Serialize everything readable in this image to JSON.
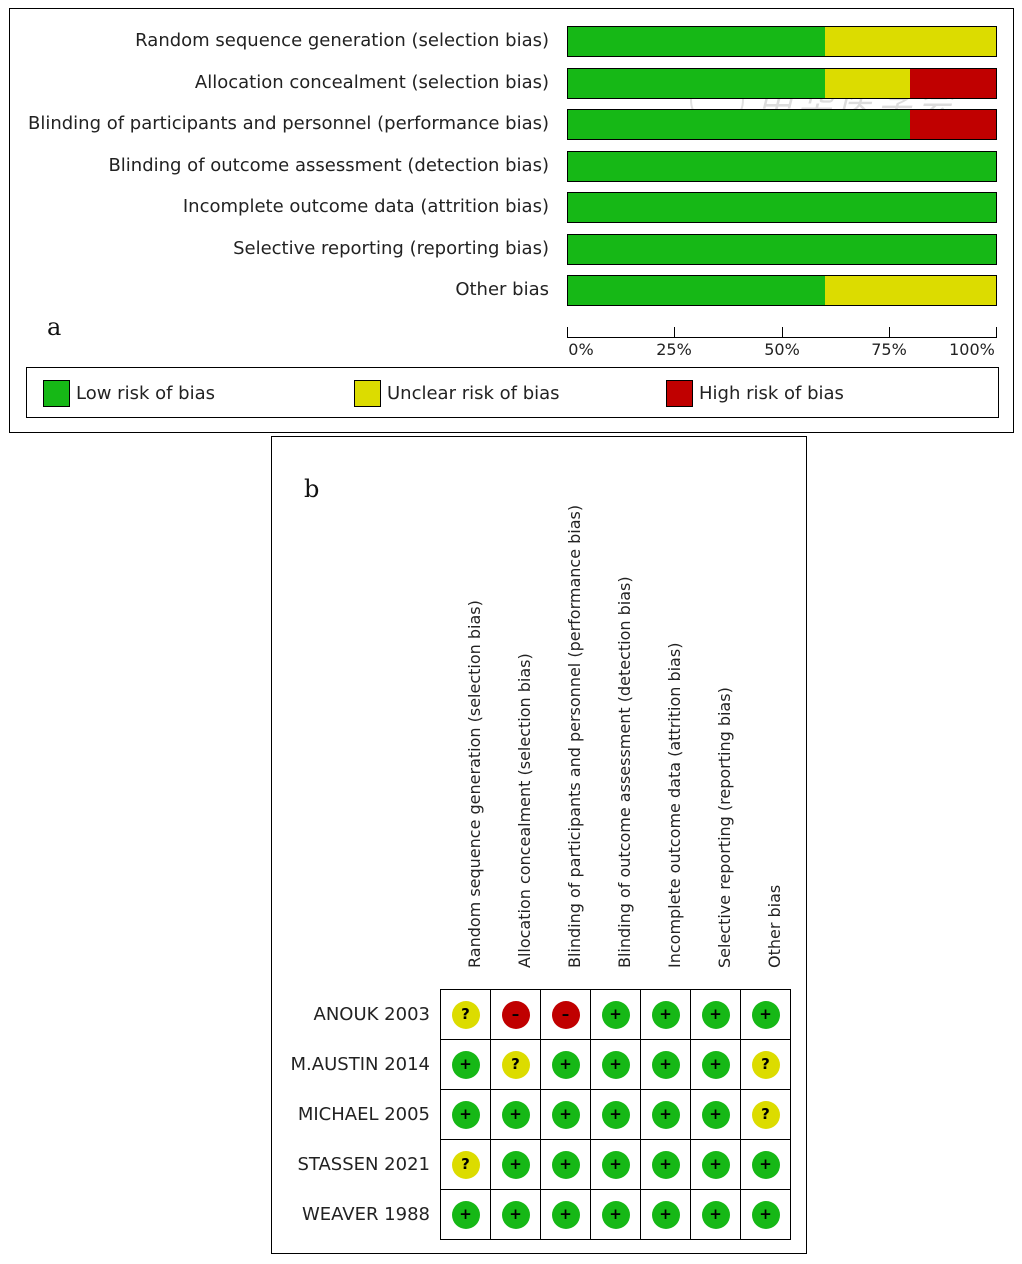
{
  "colors": {
    "low": "#16b816",
    "unclear": "#dcdc00",
    "high": "#c00000"
  },
  "symbols": {
    "low": "+",
    "unclear": "?",
    "high": "–"
  },
  "watermark": {
    "text": "中华医学会",
    "icon": "seal-icon"
  },
  "chart_data": [
    {
      "type": "bar",
      "orientation": "horizontal",
      "stacked": true,
      "panel_label": "a",
      "categories": [
        "Random sequence generation (selection bias)",
        "Allocation concealment (selection bias)",
        "Blinding of participants and personnel (performance bias)",
        "Blinding of outcome assessment (detection bias)",
        "Incomplete outcome data (attrition bias)",
        "Selective reporting (reporting bias)",
        "Other bias"
      ],
      "series": [
        {
          "key": "low",
          "name": "Low risk of bias",
          "values": [
            60,
            60,
            80,
            100,
            100,
            100,
            60
          ]
        },
        {
          "key": "unclear",
          "name": "Unclear risk of bias",
          "values": [
            40,
            20,
            0,
            0,
            0,
            0,
            40
          ]
        },
        {
          "key": "high",
          "name": "High risk of bias",
          "values": [
            0,
            20,
            20,
            0,
            0,
            0,
            0
          ]
        }
      ],
      "xlim": [
        0,
        100
      ],
      "xticks": [
        "0%",
        "25%",
        "50%",
        "75%",
        "100%"
      ],
      "legend_position": "bottom"
    },
    {
      "type": "table",
      "panel_label": "b",
      "columns": [
        "Random sequence generation (selection bias)",
        "Allocation concealment (selection bias)",
        "Blinding of participants and personnel (performance bias)",
        "Blinding of outcome assessment (detection bias)",
        "Incomplete outcome data (attrition bias)",
        "Selective reporting (reporting bias)",
        "Other bias"
      ],
      "rows": [
        {
          "study": "ANOUK 2003",
          "ratings": [
            "unclear",
            "high",
            "high",
            "low",
            "low",
            "low",
            "low"
          ]
        },
        {
          "study": "M.AUSTIN 2014",
          "ratings": [
            "low",
            "unclear",
            "low",
            "low",
            "low",
            "low",
            "unclear"
          ]
        },
        {
          "study": "MICHAEL 2005",
          "ratings": [
            "low",
            "low",
            "low",
            "low",
            "low",
            "low",
            "unclear"
          ]
        },
        {
          "study": "STASSEN 2021",
          "ratings": [
            "unclear",
            "low",
            "low",
            "low",
            "low",
            "low",
            "low"
          ]
        },
        {
          "study": "WEAVER 1988",
          "ratings": [
            "low",
            "low",
            "low",
            "low",
            "low",
            "low",
            "low"
          ]
        }
      ]
    }
  ]
}
